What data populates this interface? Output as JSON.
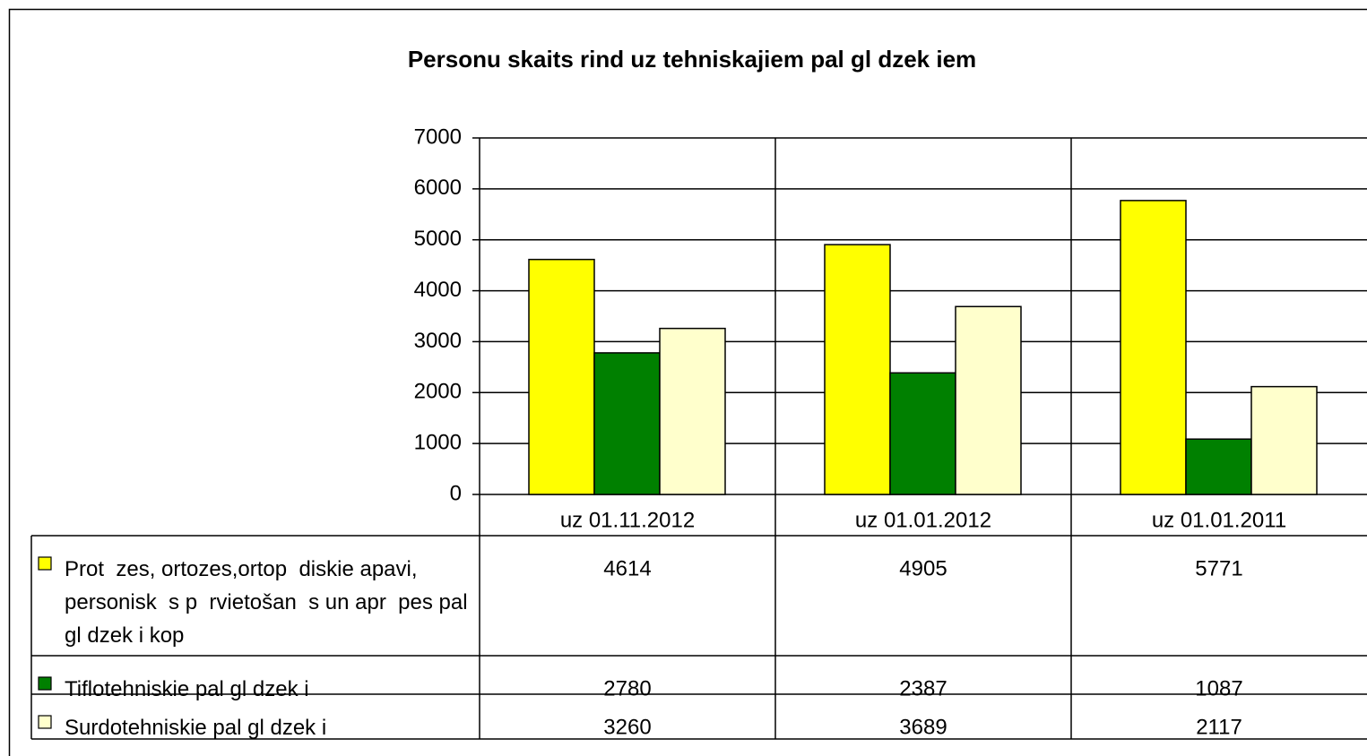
{
  "chart_data": {
    "type": "bar",
    "title": "Personu skaits rind   uz tehniskajiem pal gl dzek iem",
    "categories": [
      "uz 01.11.2012",
      "uz 01.01.2012",
      "uz 01.01.2011"
    ],
    "series": [
      {
        "name": "Prot  zes, ortozes,ortop  diskie apavi, personisk  s p  rvietošan  s un apr  pes pal gl dzek i kop",
        "color": "#ffff00",
        "values": [
          4614,
          4905,
          5771
        ]
      },
      {
        "name": "Tiflotehniskie pal gl dzek i",
        "color": "#008000",
        "values": [
          2780,
          2387,
          1087
        ]
      },
      {
        "name": "Surdotehniskie pal gl dzek i",
        "color": "#ffffcc",
        "values": [
          3260,
          3689,
          2117
        ]
      }
    ],
    "ylim": [
      0,
      7000
    ],
    "yticks": [
      0,
      1000,
      2000,
      3000,
      4000,
      5000,
      6000,
      7000
    ],
    "grid": true,
    "data_table": true
  }
}
